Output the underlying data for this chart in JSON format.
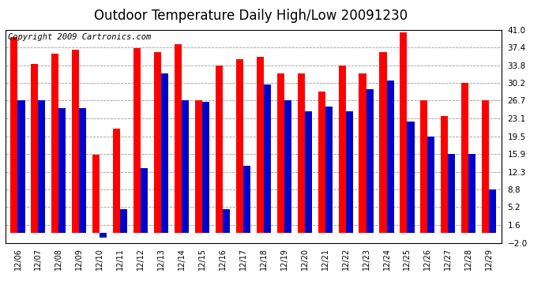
{
  "title": "Outdoor Temperature Daily High/Low 20091230",
  "copyright": "Copyright 2009 Cartronics.com",
  "dates": [
    "12/06",
    "12/07",
    "12/08",
    "12/09",
    "12/10",
    "12/11",
    "12/12",
    "12/13",
    "12/14",
    "12/15",
    "12/16",
    "12/17",
    "12/18",
    "12/19",
    "12/20",
    "12/21",
    "12/22",
    "12/23",
    "12/24",
    "12/25",
    "12/26",
    "12/27",
    "12/28",
    "12/29"
  ],
  "highs": [
    39.5,
    34.0,
    36.2,
    37.0,
    15.8,
    21.0,
    37.2,
    36.5,
    38.0,
    26.7,
    33.8,
    35.0,
    35.5,
    32.2,
    32.2,
    28.5,
    33.8,
    32.2,
    36.5,
    40.5,
    26.7,
    23.5,
    30.2,
    26.7
  ],
  "lows": [
    26.7,
    26.7,
    25.2,
    25.2,
    -1.0,
    4.8,
    13.0,
    32.2,
    26.7,
    26.5,
    4.8,
    13.5,
    30.0,
    26.7,
    24.5,
    25.5,
    24.5,
    29.0,
    30.8,
    22.5,
    19.5,
    15.9,
    15.9,
    8.8
  ],
  "ylim": [
    -2.0,
    41.0
  ],
  "yticks": [
    -2.0,
    1.6,
    5.2,
    8.8,
    12.3,
    15.9,
    19.5,
    23.1,
    26.7,
    30.2,
    33.8,
    37.4,
    41.0
  ],
  "high_color": "#ff0000",
  "low_color": "#0000cc",
  "bg_color": "#ffffff",
  "grid_color": "#999999",
  "bar_width": 0.35,
  "title_fontsize": 12,
  "copyright_fontsize": 7.5
}
